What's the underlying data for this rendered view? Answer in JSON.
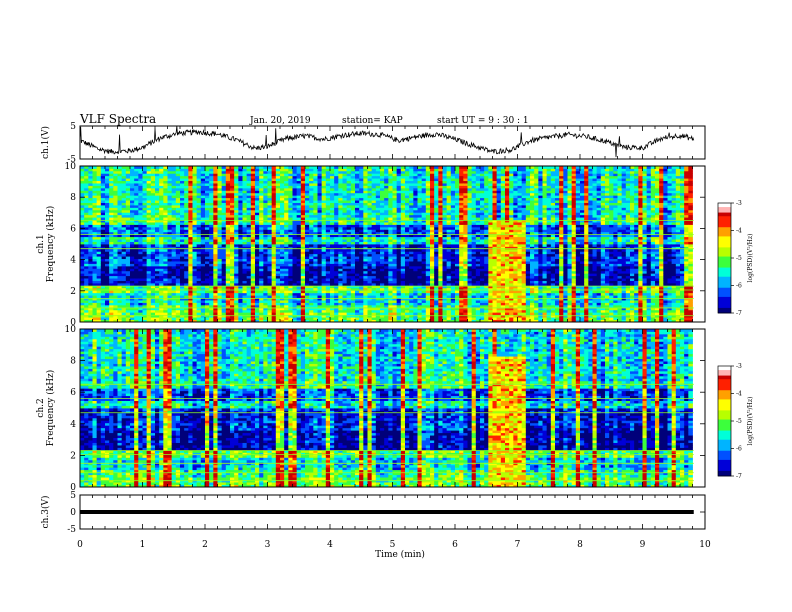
{
  "header": {
    "title": "VLF Spectra",
    "date": "Jan. 20, 2019",
    "station": "station= KAP",
    "start": "start UT =  9 : 30 : 1"
  },
  "colors": {
    "colormap": [
      "#00007a",
      "#0000d8",
      "#0050ff",
      "#00b4ff",
      "#00ffd8",
      "#3cff3c",
      "#b8ff00",
      "#ffff00",
      "#ffa000",
      "#ff2000",
      "#c80000",
      "#ffb4b4",
      "#ffffff"
    ]
  },
  "chart_data": [
    {
      "type": "line",
      "name": "ch1-waveform",
      "ylabel": "ch.1(V)",
      "ylim": [
        -5,
        5
      ],
      "yticks": [
        "5",
        "-5"
      ],
      "xlim": [
        0,
        10
      ],
      "x": [
        0,
        0.3,
        0.5,
        0.8,
        1.0,
        1.3,
        1.6,
        1.9,
        2.2,
        2.5,
        2.8,
        3.0,
        3.3,
        3.6,
        3.9,
        4.2,
        4.5,
        4.8,
        5.1,
        5.4,
        5.7,
        6.0,
        6.3,
        6.6,
        6.9,
        7.2,
        7.5,
        7.8,
        8.1,
        8.4,
        8.7,
        9.0,
        9.3,
        9.6,
        9.82
      ],
      "y": [
        0.6,
        -2.0,
        -2.8,
        -2.5,
        -1.5,
        1.5,
        2.8,
        3.2,
        2.6,
        0.8,
        -1.8,
        -1.2,
        1.2,
        2.0,
        1.0,
        2.2,
        2.8,
        2.4,
        0.6,
        1.8,
        2.6,
        1.0,
        -1.0,
        -2.8,
        -2.2,
        0.5,
        1.6,
        2.4,
        1.8,
        0.4,
        -1.4,
        -1.6,
        1.2,
        2.2,
        1.0
      ]
    },
    {
      "type": "heatmap",
      "name": "ch1-spectrogram",
      "ylabel": "ch.1\nFrequency (kHz)",
      "ylim": [
        0,
        10
      ],
      "yticks": [
        "0",
        "2",
        "4",
        "6",
        "8",
        "10"
      ],
      "xlim": [
        0,
        10
      ],
      "zlabel": "log(PSD)(V²/Hz)",
      "zlim": [
        -7,
        -3
      ],
      "zticks": [
        "-3",
        "-4",
        "-5",
        "-6",
        "-7"
      ]
    },
    {
      "type": "heatmap",
      "name": "ch2-spectrogram",
      "ylabel": "ch.2\nFrequency (kHz)",
      "ylim": [
        0,
        10
      ],
      "yticks": [
        "0",
        "2",
        "4",
        "6",
        "8",
        "10"
      ],
      "xlim": [
        0,
        10
      ],
      "zlabel": "log(PSD)(V²/Hz)",
      "zlim": [
        -7,
        -3
      ],
      "zticks": [
        "-3",
        "-4",
        "-5",
        "-6",
        "-7"
      ]
    },
    {
      "type": "line",
      "name": "ch3-waveform",
      "ylabel": "ch.3(V)",
      "ylim": [
        -5,
        5
      ],
      "yticks": [
        "5",
        "0",
        "-5"
      ],
      "xlim": [
        0,
        10
      ],
      "x": [
        0,
        9.82
      ],
      "y": [
        0,
        0
      ]
    }
  ],
  "xaxis": {
    "label": "Time (min)",
    "ticks": [
      "0",
      "1",
      "2",
      "3",
      "4",
      "5",
      "6",
      "7",
      "8",
      "9",
      "10"
    ]
  }
}
